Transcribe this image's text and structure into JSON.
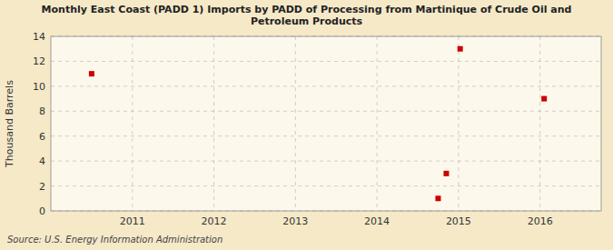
{
  "chart_data": {
    "type": "scatter",
    "title": "Monthly East Coast (PADD 1) Imports by PADD of Processing from Martinique of Crude Oil and\nPetroleum Products",
    "ylabel": "Thousand Barrels",
    "source": "Source: U.S. Energy Information Administration",
    "x": [
      2010.5,
      2014.75,
      2014.85,
      2015.02,
      2016.05
    ],
    "values": [
      11,
      1,
      3,
      13,
      9
    ],
    "xlim": [
      2010.0,
      2016.75
    ],
    "ylim": [
      0,
      14
    ],
    "xticks": [
      2011,
      2012,
      2013,
      2014,
      2015,
      2016
    ],
    "yticks": [
      0,
      2,
      4,
      6,
      8,
      10,
      12,
      14
    ],
    "grid": true,
    "color": "#cc0000",
    "marker": "square"
  }
}
